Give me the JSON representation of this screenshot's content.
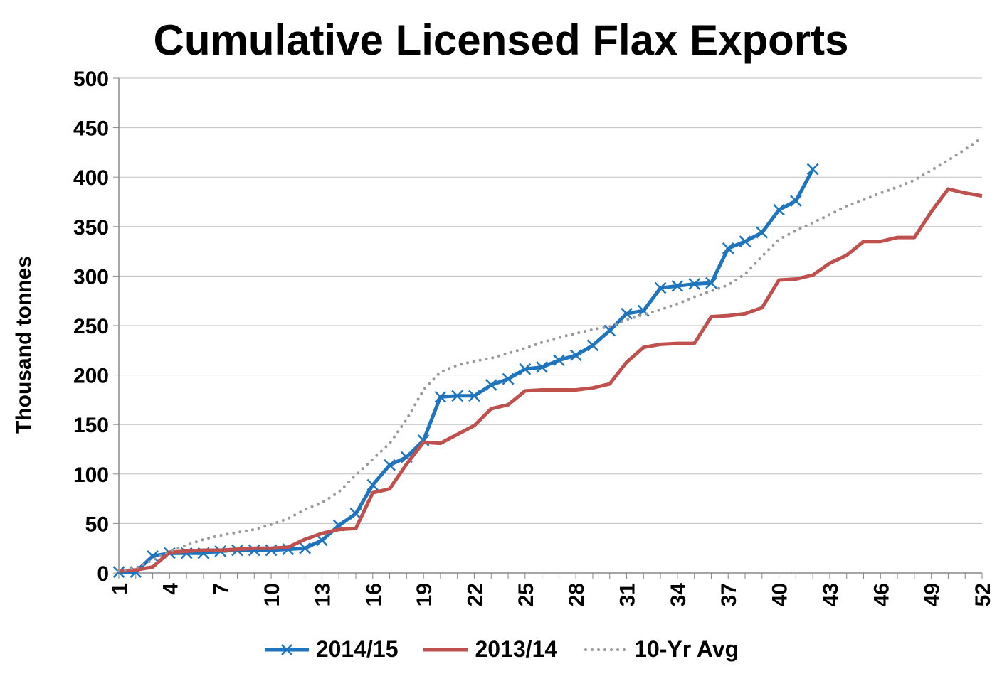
{
  "chart_data": {
    "type": "line",
    "title": "Cumulative Licensed Flax Exports",
    "xlabel": "",
    "ylabel": "Thousand tonnes",
    "xlim": [
      1,
      52
    ],
    "ylim": [
      0,
      500
    ],
    "yticks": [
      0,
      50,
      100,
      150,
      200,
      250,
      300,
      350,
      400,
      450,
      500
    ],
    "xticks": [
      1,
      4,
      7,
      10,
      13,
      16,
      19,
      22,
      25,
      28,
      31,
      34,
      37,
      40,
      43,
      46,
      49,
      52
    ],
    "grid": true,
    "legend_position": "bottom",
    "series": [
      {
        "name": "2014/15",
        "color": "#1F74BE",
        "style": "solid-marker-x",
        "x": [
          1,
          2,
          3,
          4,
          5,
          6,
          7,
          8,
          9,
          10,
          11,
          12,
          13,
          14,
          15,
          16,
          17,
          18,
          19,
          20,
          21,
          22,
          23,
          24,
          25,
          26,
          27,
          28,
          29,
          30,
          31,
          32,
          33,
          34,
          35,
          36,
          37,
          38,
          39,
          40,
          41,
          42
        ],
        "values": [
          1,
          1,
          17,
          20,
          20,
          20,
          22,
          23,
          23,
          23,
          24,
          25,
          33,
          48,
          60,
          89,
          109,
          117,
          134,
          178,
          179,
          179,
          190,
          196,
          206,
          208,
          215,
          220,
          230,
          245,
          262,
          265,
          288,
          290,
          292,
          293,
          328,
          335,
          344,
          367,
          376,
          408
        ]
      },
      {
        "name": "2013/14",
        "color": "#C0504D",
        "style": "solid",
        "x": [
          1,
          2,
          3,
          4,
          5,
          6,
          7,
          8,
          9,
          10,
          11,
          12,
          13,
          14,
          15,
          16,
          17,
          18,
          19,
          20,
          21,
          22,
          23,
          24,
          25,
          26,
          27,
          28,
          29,
          30,
          31,
          32,
          33,
          34,
          35,
          36,
          37,
          38,
          39,
          40,
          41,
          42,
          43,
          44,
          45,
          46,
          47,
          48,
          49,
          50,
          51,
          52
        ],
        "values": [
          2,
          3,
          6,
          21,
          22,
          23,
          23,
          24,
          25,
          25,
          26,
          34,
          40,
          44,
          45,
          81,
          85,
          110,
          132,
          131,
          140,
          149,
          166,
          170,
          184,
          185,
          185,
          185,
          187,
          191,
          213,
          228,
          231,
          232,
          232,
          259,
          260,
          262,
          268,
          296,
          297,
          301,
          313,
          321,
          335,
          335,
          339,
          339,
          365,
          388,
          384,
          381
        ]
      },
      {
        "name": "10-Yr Avg",
        "color": "#999999",
        "style": "dotted",
        "x": [
          1,
          2,
          3,
          4,
          5,
          6,
          7,
          8,
          9,
          10,
          11,
          12,
          13,
          14,
          15,
          16,
          17,
          18,
          19,
          20,
          21,
          22,
          23,
          24,
          25,
          26,
          27,
          28,
          29,
          30,
          31,
          32,
          33,
          34,
          35,
          36,
          37,
          38,
          39,
          40,
          41,
          42,
          43,
          44,
          45,
          46,
          47,
          48,
          49,
          50,
          51,
          52
        ],
        "values": [
          2,
          5,
          13,
          22,
          28,
          34,
          38,
          41,
          44,
          49,
          55,
          64,
          71,
          82,
          99,
          115,
          131,
          155,
          185,
          203,
          210,
          214,
          217,
          222,
          227,
          233,
          238,
          242,
          246,
          249,
          256,
          261,
          266,
          272,
          279,
          285,
          291,
          302,
          320,
          337,
          346,
          354,
          362,
          371,
          377,
          384,
          390,
          397,
          407,
          417,
          428,
          440
        ]
      }
    ]
  }
}
